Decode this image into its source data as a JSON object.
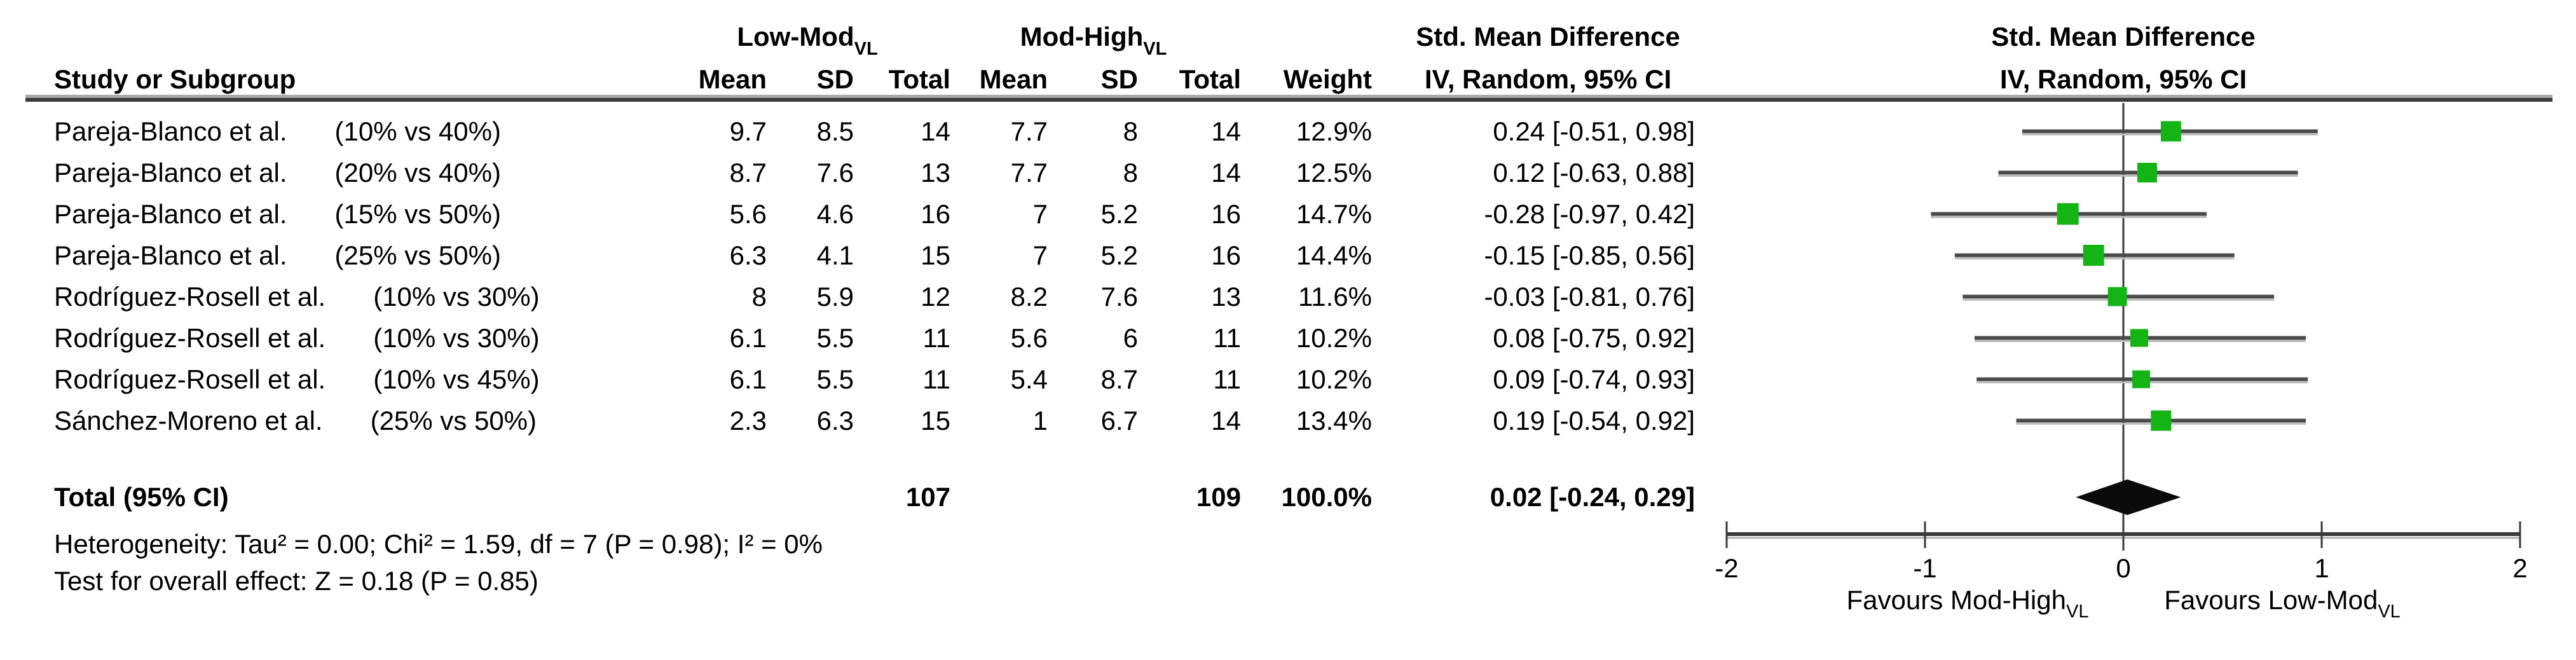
{
  "header": {
    "study_col": "Study or Subgroup",
    "group1": {
      "text": "Low-Mod",
      "sub": "VL"
    },
    "group2": {
      "text": "Mod-High",
      "sub": "VL"
    },
    "cols": {
      "mean": "Mean",
      "sd": "SD",
      "total": "Total",
      "weight": "Weight"
    },
    "smd_line1": "Std. Mean Difference",
    "smd_line2": "IV, Random, 95% CI"
  },
  "rows": [
    {
      "study": "Pareja-Blanco et al.",
      "subgroup": "(10% vs 40%)",
      "mean1": "9.7",
      "sd1": "8.5",
      "total1": "14",
      "mean2": "7.7",
      "sd2": "8",
      "total2": "14",
      "weight": "12.9%",
      "ci": "0.24 [-0.51, 0.98]"
    },
    {
      "study": "Pareja-Blanco et al.",
      "subgroup": "(20% vs 40%)",
      "mean1": "8.7",
      "sd1": "7.6",
      "total1": "13",
      "mean2": "7.7",
      "sd2": "8",
      "total2": "14",
      "weight": "12.5%",
      "ci": "0.12 [-0.63, 0.88]"
    },
    {
      "study": "Pareja-Blanco et al.",
      "subgroup": "(15% vs 50%)",
      "mean1": "5.6",
      "sd1": "4.6",
      "total1": "16",
      "mean2": "7",
      "sd2": "5.2",
      "total2": "16",
      "weight": "14.7%",
      "ci": "-0.28 [-0.97, 0.42]"
    },
    {
      "study": "Pareja-Blanco et al.",
      "subgroup": "(25% vs 50%)",
      "mean1": "6.3",
      "sd1": "4.1",
      "total1": "15",
      "mean2": "7",
      "sd2": "5.2",
      "total2": "16",
      "weight": "14.4%",
      "ci": "-0.15 [-0.85, 0.56]"
    },
    {
      "study": "Rodríguez-Rosell et al.",
      "subgroup": "(10% vs 30%)",
      "mean1": "8",
      "sd1": "5.9",
      "total1": "12",
      "mean2": "8.2",
      "sd2": "7.6",
      "total2": "13",
      "weight": "11.6%",
      "ci": "-0.03 [-0.81, 0.76]"
    },
    {
      "study": "Rodríguez-Rosell et al.",
      "subgroup": "(10% vs 30%)",
      "mean1": "6.1",
      "sd1": "5.5",
      "total1": "11",
      "mean2": "5.6",
      "sd2": "6",
      "total2": "11",
      "weight": "10.2%",
      "ci": "0.08 [-0.75, 0.92]"
    },
    {
      "study": "Rodríguez-Rosell et al.",
      "subgroup": "(10% vs 45%)",
      "mean1": "6.1",
      "sd1": "5.5",
      "total1": "11",
      "mean2": "5.4",
      "sd2": "8.7",
      "total2": "11",
      "weight": "10.2%",
      "ci": "0.09 [-0.74, 0.93]"
    },
    {
      "study": "Sánchez-Moreno et al.",
      "subgroup": "(25% vs 50%)",
      "mean1": "2.3",
      "sd1": "6.3",
      "total1": "15",
      "mean2": "1",
      "sd2": "6.7",
      "total2": "14",
      "weight": "13.4%",
      "ci": "0.19 [-0.54, 0.92]"
    }
  ],
  "total_row": {
    "label": "Total (95% CI)",
    "total1": "107",
    "total2": "109",
    "weight": "100.0%",
    "ci": "0.02 [-0.24, 0.29]"
  },
  "footnotes": {
    "heterogeneity": "Heterogeneity: Tau² = 0.00; Chi² = 1.59, df = 7 (P = 0.98); I² = 0%",
    "overall_effect": "Test for overall effect: Z = 0.18 (P = 0.85)"
  },
  "chart_data": {
    "type": "forest",
    "title": "Std. Mean Difference",
    "subtitle": "IV, Random, 95% CI",
    "xlim": [
      -2,
      2
    ],
    "ticks": [
      -2,
      -1,
      0,
      1,
      2
    ],
    "tick_labels": [
      "-2",
      "-1",
      "0",
      "1",
      "2"
    ],
    "favours_left": {
      "text": "Favours Mod-High",
      "sub": "VL"
    },
    "favours_right": {
      "text": "Favours Low-Mod",
      "sub": "VL"
    },
    "marker_color": "#15b415",
    "line_color": "#4a4a4a",
    "diamond_color": "#0a0a0a",
    "studies": [
      {
        "label": "Pareja-Blanco et al. (10% vs 40%)",
        "smd": 0.24,
        "ci_lo": -0.51,
        "ci_hi": 0.98,
        "weight_pct": 12.9
      },
      {
        "label": "Pareja-Blanco et al. (20% vs 40%)",
        "smd": 0.12,
        "ci_lo": -0.63,
        "ci_hi": 0.88,
        "weight_pct": 12.5
      },
      {
        "label": "Pareja-Blanco et al. (15% vs 50%)",
        "smd": -0.28,
        "ci_lo": -0.97,
        "ci_hi": 0.42,
        "weight_pct": 14.7
      },
      {
        "label": "Pareja-Blanco et al. (25% vs 50%)",
        "smd": -0.15,
        "ci_lo": -0.85,
        "ci_hi": 0.56,
        "weight_pct": 14.4
      },
      {
        "label": "Rodríguez-Rosell et al. (10% vs 30%)",
        "smd": -0.03,
        "ci_lo": -0.81,
        "ci_hi": 0.76,
        "weight_pct": 11.6
      },
      {
        "label": "Rodríguez-Rosell et al. (10% vs 30%)",
        "smd": 0.08,
        "ci_lo": -0.75,
        "ci_hi": 0.92,
        "weight_pct": 10.2
      },
      {
        "label": "Rodríguez-Rosell et al. (10% vs 45%)",
        "smd": 0.09,
        "ci_lo": -0.74,
        "ci_hi": 0.93,
        "weight_pct": 10.2
      },
      {
        "label": "Sánchez-Moreno et al. (25% vs 50%)",
        "smd": 0.19,
        "ci_lo": -0.54,
        "ci_hi": 0.92,
        "weight_pct": 13.4
      }
    ],
    "total": {
      "label": "Total (95% CI)",
      "smd": 0.02,
      "ci_lo": -0.24,
      "ci_hi": 0.29
    }
  }
}
